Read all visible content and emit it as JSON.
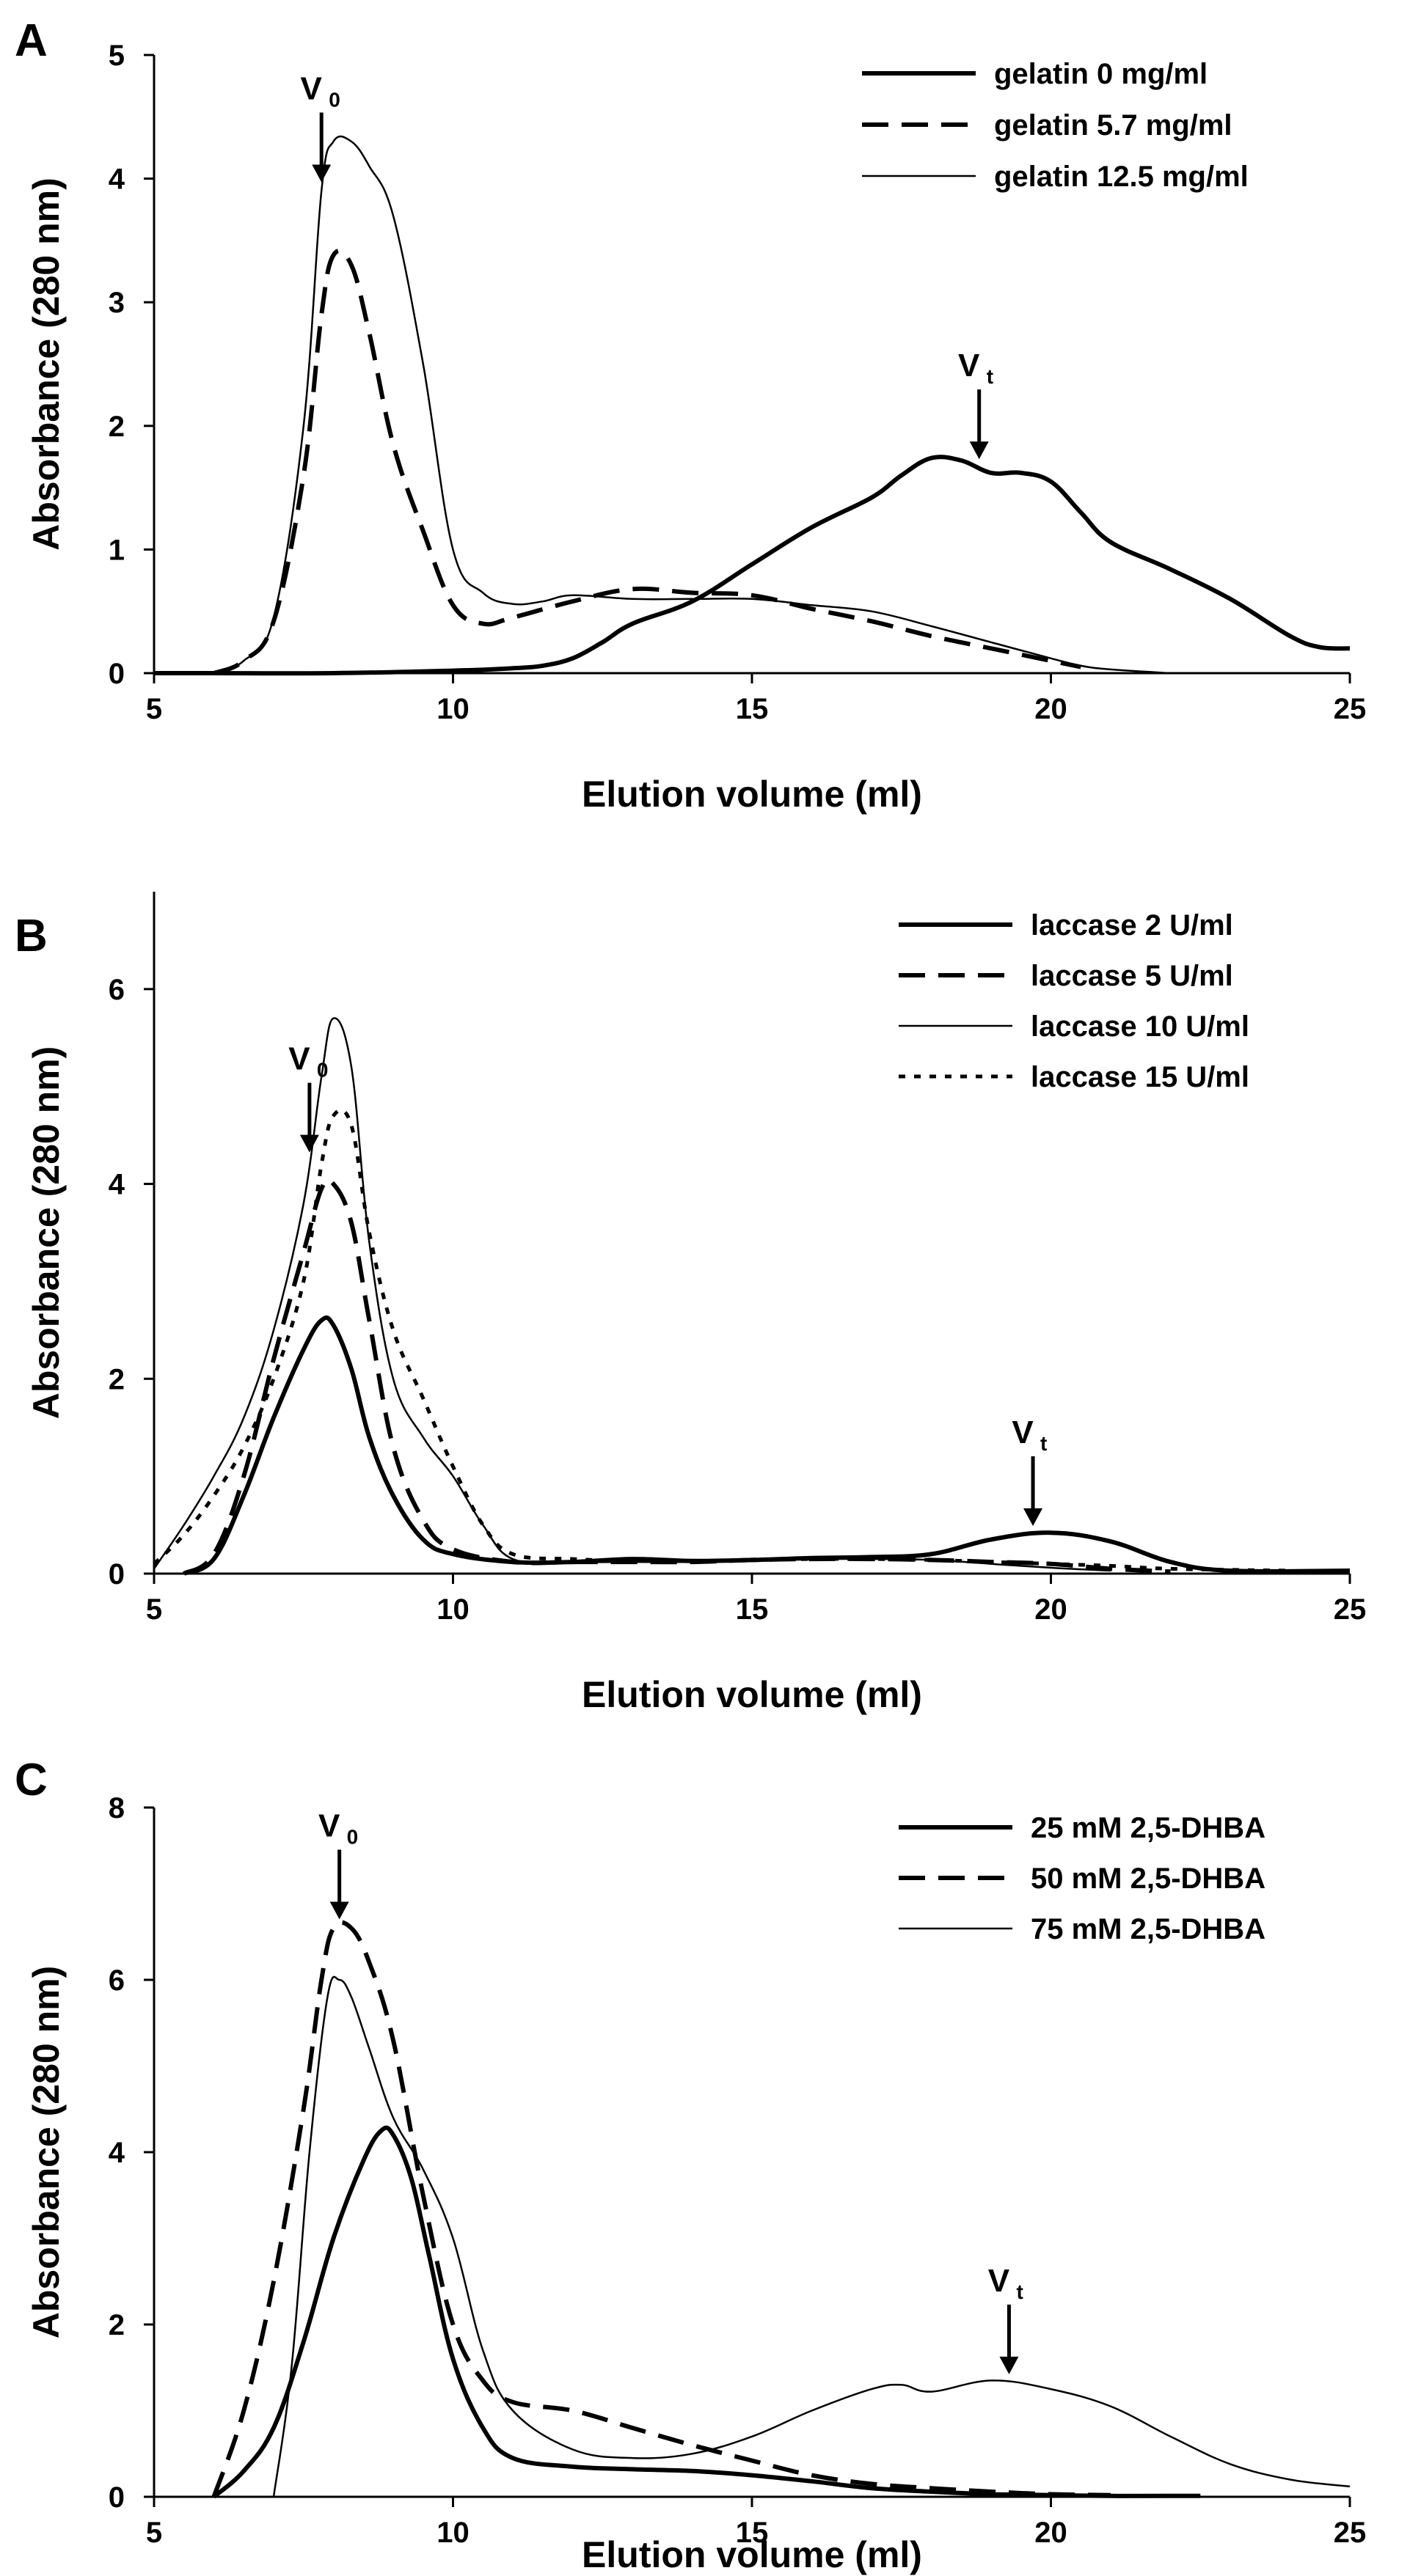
{
  "chart_data": [
    {
      "panel_label": "A",
      "type": "line",
      "xlabel": "Elution volume (ml)",
      "ylabel": "Absorbance (280 nm)",
      "xlim": [
        5,
        25
      ],
      "ylim": [
        0,
        5
      ],
      "xticks": [
        "5",
        "10",
        "15",
        "20",
        "25"
      ],
      "yticks": [
        "0",
        "1",
        "2",
        "3",
        "4",
        "5"
      ],
      "legend_position": "top-right",
      "series": [
        {
          "name": "gelatin 0 mg/ml",
          "style": "solid-thick",
          "x": [
            5,
            6,
            8,
            10,
            11,
            11.5,
            12,
            12.5,
            13,
            14,
            15,
            16,
            17,
            17.5,
            18,
            18.5,
            19,
            19.5,
            20,
            20.5,
            21,
            22,
            23,
            24,
            24.5,
            25
          ],
          "y": [
            0,
            0,
            0,
            0.02,
            0.04,
            0.06,
            0.12,
            0.25,
            0.4,
            0.58,
            0.88,
            1.18,
            1.42,
            1.6,
            1.74,
            1.72,
            1.62,
            1.62,
            1.55,
            1.3,
            1.06,
            0.84,
            0.6,
            0.3,
            0.21,
            0.2
          ]
        },
        {
          "name": "gelatin 5.7 mg/ml",
          "style": "dashed-thick",
          "x": [
            6,
            6.5,
            7,
            7.5,
            7.8,
            8,
            8.3,
            8.6,
            9,
            9.5,
            10,
            10.5,
            11,
            12,
            13,
            14,
            15,
            16,
            17,
            18,
            19,
            20,
            20.5
          ],
          "y": [
            0,
            0.1,
            0.42,
            1.6,
            2.9,
            3.38,
            3.3,
            2.75,
            1.85,
            1.15,
            0.55,
            0.4,
            0.45,
            0.58,
            0.68,
            0.65,
            0.63,
            0.52,
            0.42,
            0.3,
            0.2,
            0.1,
            0.05
          ]
        },
        {
          "name": "gelatin 12.5 mg/ml",
          "style": "solid-thin",
          "x": [
            6,
            6.5,
            7,
            7.5,
            7.8,
            8,
            8.3,
            8.6,
            9,
            9.5,
            10,
            10.5,
            11,
            11.5,
            12,
            13,
            14,
            15,
            16,
            17,
            18,
            19,
            20,
            20.5,
            21,
            22
          ],
          "y": [
            0,
            0.1,
            0.45,
            2.0,
            3.9,
            4.3,
            4.3,
            4.1,
            3.7,
            2.5,
            1.0,
            0.65,
            0.56,
            0.58,
            0.63,
            0.6,
            0.6,
            0.6,
            0.55,
            0.5,
            0.38,
            0.25,
            0.12,
            0.06,
            0.03,
            0
          ]
        }
      ],
      "annotations": [
        {
          "label": "V",
          "subscript": "0",
          "x": 7.8
        },
        {
          "label": "V",
          "subscript": "t",
          "x": 18.8
        }
      ]
    },
    {
      "panel_label": "B",
      "type": "line",
      "xlabel": "Elution volume (ml)",
      "ylabel": "Absorbance (280 nm)",
      "xlim": [
        5,
        25
      ],
      "ylim": [
        0,
        7
      ],
      "xticks": [
        "5",
        "10",
        "15",
        "20",
        "25"
      ],
      "yticks": [
        "0",
        "2",
        "4",
        "6"
      ],
      "legend_position": "top-right",
      "series": [
        {
          "name": "laccase 2 U/ml",
          "style": "solid-thick",
          "x": [
            5.5,
            6,
            6.5,
            7,
            7.5,
            7.8,
            8,
            8.3,
            8.6,
            9,
            9.5,
            10,
            11,
            12,
            13,
            14,
            15,
            16,
            17,
            18,
            19,
            20,
            21,
            22,
            23,
            25
          ],
          "y": [
            0,
            0.15,
            0.8,
            1.6,
            2.3,
            2.6,
            2.55,
            2.1,
            1.4,
            0.8,
            0.35,
            0.2,
            0.12,
            0.12,
            0.15,
            0.13,
            0.14,
            0.16,
            0.17,
            0.2,
            0.35,
            0.42,
            0.33,
            0.12,
            0.03,
            0.03
          ]
        },
        {
          "name": "laccase 5 U/ml",
          "style": "dashed-thick",
          "x": [
            5.5,
            6,
            6.5,
            7,
            7.5,
            7.8,
            8,
            8.3,
            8.6,
            9,
            9.5,
            10,
            11,
            12,
            13,
            14,
            15,
            16,
            17,
            18,
            19,
            20,
            21,
            22
          ],
          "y": [
            0,
            0.2,
            1.0,
            2.2,
            3.3,
            3.95,
            4.0,
            3.6,
            2.6,
            1.3,
            0.55,
            0.25,
            0.12,
            0.12,
            0.12,
            0.12,
            0.14,
            0.15,
            0.15,
            0.14,
            0.12,
            0.1,
            0.05,
            0.02
          ]
        },
        {
          "name": "laccase 10 U/ml",
          "style": "solid-thin",
          "x": [
            5,
            5.5,
            6,
            6.5,
            7,
            7.5,
            7.8,
            8,
            8.3,
            8.6,
            9,
            9.5,
            10,
            10.5,
            11,
            12,
            13,
            14,
            15,
            16,
            17,
            18,
            19,
            20,
            21
          ],
          "y": [
            0.05,
            0.5,
            1.0,
            1.6,
            2.5,
            3.8,
            5.1,
            5.7,
            5.2,
            3.4,
            2.0,
            1.4,
            1.0,
            0.5,
            0.15,
            0.12,
            0.12,
            0.12,
            0.14,
            0.15,
            0.15,
            0.14,
            0.1,
            0.06,
            0.03
          ]
        },
        {
          "name": "laccase 15 U/ml",
          "style": "dotted",
          "x": [
            5,
            5.5,
            6,
            6.5,
            7,
            7.5,
            7.8,
            8,
            8.3,
            8.6,
            9,
            9.5,
            10,
            10.5,
            11,
            12,
            13,
            14,
            15,
            16,
            17,
            18,
            19,
            20,
            21,
            22,
            24
          ],
          "y": [
            0.1,
            0.4,
            0.8,
            1.3,
            2.0,
            3.0,
            4.2,
            4.7,
            4.6,
            3.5,
            2.5,
            1.8,
            1.1,
            0.5,
            0.2,
            0.15,
            0.13,
            0.13,
            0.14,
            0.15,
            0.15,
            0.14,
            0.12,
            0.1,
            0.08,
            0.05,
            0.03
          ]
        }
      ],
      "annotations": [
        {
          "label": "V",
          "subscript": "0",
          "x": 7.6
        },
        {
          "label": "V",
          "subscript": "t",
          "x": 19.7
        }
      ]
    },
    {
      "panel_label": "C",
      "type": "line",
      "xlabel": "Elution volume (ml)",
      "ylabel": "Absorbance (280 nm)",
      "xlim": [
        5,
        25
      ],
      "ylim": [
        0,
        8
      ],
      "xticks": [
        "5",
        "10",
        "15",
        "20",
        "25"
      ],
      "yticks": [
        "0",
        "2",
        "4",
        "6",
        "8"
      ],
      "legend_position": "top-right",
      "series": [
        {
          "name": "25 mM 2,5-DHBA",
          "style": "solid-thick",
          "x": [
            6,
            6.5,
            7,
            7.5,
            8,
            8.5,
            8.8,
            9,
            9.3,
            9.6,
            10,
            10.5,
            11,
            12,
            13,
            14,
            15,
            16,
            17,
            18,
            19,
            20,
            21,
            22,
            22.5
          ],
          "y": [
            0,
            0.3,
            0.8,
            1.8,
            3.0,
            3.9,
            4.25,
            4.2,
            3.7,
            2.8,
            1.6,
            0.8,
            0.45,
            0.35,
            0.32,
            0.3,
            0.25,
            0.18,
            0.1,
            0.06,
            0.03,
            0.02,
            0.01,
            0.01,
            0.01
          ]
        },
        {
          "name": "50 mM 2,5-DHBA",
          "style": "dashed-thick",
          "x": [
            6,
            6.5,
            7,
            7.5,
            7.8,
            8,
            8.3,
            8.6,
            9,
            9.5,
            10,
            10.5,
            11,
            12,
            13,
            14,
            15,
            16,
            17,
            18,
            19,
            20,
            21
          ],
          "y": [
            0,
            1.0,
            2.5,
            4.5,
            6.0,
            6.6,
            6.6,
            6.2,
            5.3,
            3.5,
            2.0,
            1.35,
            1.1,
            1.0,
            0.8,
            0.6,
            0.42,
            0.25,
            0.15,
            0.1,
            0.06,
            0.03,
            0.02
          ]
        },
        {
          "name": "75 mM 2,5-DHBA",
          "style": "solid-thin",
          "x": [
            7,
            7.3,
            7.6,
            7.9,
            8.1,
            8.3,
            8.6,
            9,
            9.5,
            10,
            10.5,
            11,
            12,
            13,
            14,
            15,
            16,
            17,
            17.5,
            18,
            19,
            20,
            21,
            22,
            23,
            24,
            25
          ],
          "y": [
            0,
            1.5,
            4.0,
            5.8,
            6.0,
            5.8,
            5.2,
            4.4,
            3.8,
            3.0,
            1.7,
            1.0,
            0.55,
            0.45,
            0.5,
            0.7,
            1.0,
            1.25,
            1.3,
            1.22,
            1.35,
            1.25,
            1.05,
            0.7,
            0.38,
            0.2,
            0.12
          ]
        }
      ],
      "annotations": [
        {
          "label": "V",
          "subscript": "0",
          "x": 8.1
        },
        {
          "label": "V",
          "subscript": "t",
          "x": 19.3
        }
      ]
    }
  ]
}
